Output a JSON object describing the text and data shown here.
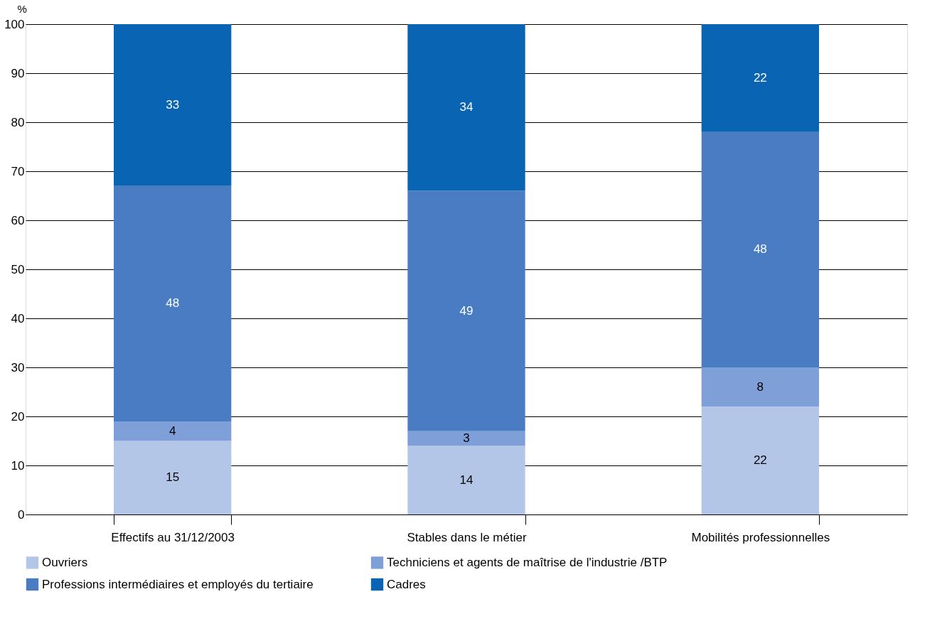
{
  "chart_data": {
    "type": "bar",
    "stacked": true,
    "ylabel": "%",
    "categories": [
      "Effectifs au 31/12/2003",
      "Stables dans le métier",
      "Mobilités professionnelles"
    ],
    "series": [
      {
        "name": "Ouvriers",
        "color": "#b4c6e7",
        "values": [
          15,
          14,
          22
        ]
      },
      {
        "name": "Techniciens et agents de maîtrise de l'industrie /BTP",
        "color": "#7f9fd9",
        "values": [
          4,
          3,
          8
        ]
      },
      {
        "name": "Professions intermédiaires et employés du tertiaire",
        "color": "#4a7cc4",
        "values": [
          48,
          49,
          48
        ]
      },
      {
        "name": "Cadres",
        "color": "#0a64b4",
        "values": [
          33,
          34,
          22
        ]
      }
    ],
    "ylim": [
      0,
      100
    ],
    "yticks": [
      0,
      10,
      20,
      30,
      40,
      50,
      60,
      70,
      80,
      90,
      100
    ],
    "grid": "y",
    "legend": "bottom",
    "data_labels": true
  }
}
